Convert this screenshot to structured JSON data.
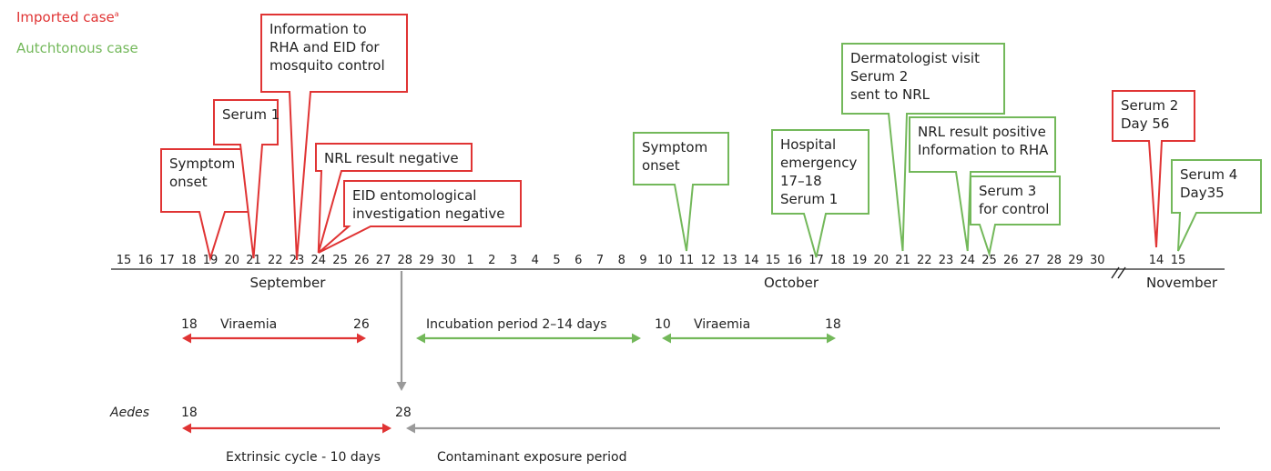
{
  "colors": {
    "imported": "#e03434",
    "autochthonous": "#73b85a",
    "neutral": "#9a9a9a",
    "axis": "#222222"
  },
  "legend": {
    "imported": {
      "text": "Imported case",
      "sup": "a"
    },
    "autochthonous": {
      "text": "Autchtonous case"
    }
  },
  "axis": {
    "sep_days": [
      "15",
      "16",
      "17",
      "18",
      "19",
      "20",
      "21",
      "22",
      "23",
      "24",
      "25",
      "26",
      "27",
      "28",
      "29",
      "30"
    ],
    "oct_days": [
      "1",
      "2",
      "3",
      "4",
      "5",
      "6",
      "7",
      "8",
      "9",
      "10",
      "11",
      "12",
      "13",
      "14",
      "15",
      "16",
      "17",
      "18",
      "19",
      "20",
      "21",
      "22",
      "23",
      "24",
      "25",
      "26",
      "27",
      "28",
      "29",
      "30"
    ],
    "nov_days": [
      "14",
      "15"
    ],
    "months": {
      "sep": "September",
      "oct": "October",
      "nov": "November"
    },
    "break_symbol": "//"
  },
  "callouts": [
    {
      "id": "imp-symptom-onset",
      "case": "imported",
      "text": "Symptom\nonset",
      "date": "Sep 19"
    },
    {
      "id": "imp-serum-1",
      "case": "imported",
      "text": "Serum 1",
      "date": "Sep 21"
    },
    {
      "id": "imp-info-rha",
      "case": "imported",
      "text": "Information to\nRHA and EID for\nmosquito control",
      "date": "Sep 23"
    },
    {
      "id": "imp-nrl-negative",
      "case": "imported",
      "text": "NRL result  negative",
      "date": "Sep 24"
    },
    {
      "id": "imp-eid-negative",
      "case": "imported",
      "text": "EID entomological\ninvestigation negative",
      "date": "Sep 24"
    },
    {
      "id": "imp-serum-2",
      "case": "imported",
      "text": "Serum 2\nDay 56",
      "date": "Nov 14"
    },
    {
      "id": "aut-symptom-onset",
      "case": "autochthonous",
      "text": "Symptom\nonset",
      "date": "Oct 11"
    },
    {
      "id": "aut-hospital",
      "case": "autochthonous",
      "text": "Hospital\nemergency\n17–18\nSerum 1",
      "date": "Oct 17"
    },
    {
      "id": "aut-dermatologist",
      "case": "autochthonous",
      "text": "Dermatologist visit\nSerum 2\nsent to NRL",
      "date": "Oct 21"
    },
    {
      "id": "aut-nrl-positive",
      "case": "autochthonous",
      "text": "NRL result positive\nInformation to RHA",
      "date": "Oct 24"
    },
    {
      "id": "aut-serum-3",
      "case": "autochthonous",
      "text": "Serum 3\nfor control",
      "date": "Oct 25"
    },
    {
      "id": "aut-serum-4",
      "case": "autochthonous",
      "text": "Serum 4\nDay35",
      "date": "Nov 15"
    }
  ],
  "periods": [
    {
      "id": "imp-viraemia",
      "case": "imported",
      "label": "Viraemia",
      "start_label": "18",
      "end_label": "26",
      "start": "Sep 18",
      "end": "Sep 26"
    },
    {
      "id": "incubation",
      "case": "autochthonous",
      "label": "Incubation period 2–14 days",
      "start": "Sep 29",
      "end": "Oct 8"
    },
    {
      "id": "aut-viraemia",
      "case": "autochthonous",
      "label": "Viraemia",
      "start_label": "10",
      "end_label": "18",
      "start": "Oct 10",
      "end": "Oct 18"
    }
  ],
  "aedes": {
    "label": "Aedes",
    "start_label": "18",
    "end_label": "28",
    "extrinsic_cycle": "Extrinsic cycle - 10 days",
    "exposure": "Contaminant exposure period"
  }
}
